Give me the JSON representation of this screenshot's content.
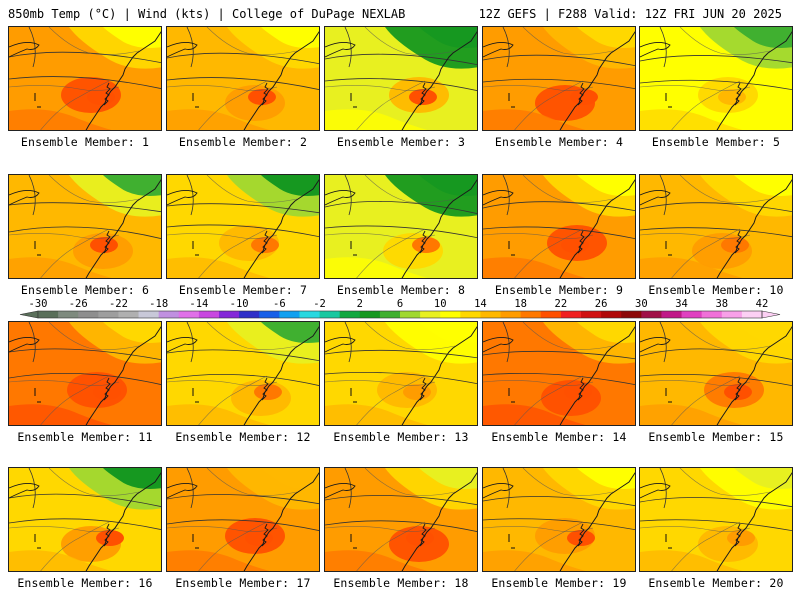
{
  "header": {
    "left": "850mb Temp (°C) | Wind (kts) | College of DuPage NEXLAB",
    "right": "12Z GEFS | F288 Valid: 12Z FRI JUN 20 2025"
  },
  "members": [
    {
      "label": "Ensemble Member: 1",
      "base": 16,
      "warm": 4,
      "cool": 3
    },
    {
      "label": "Ensemble Member: 2",
      "base": 15,
      "warm": 3,
      "cool": 2
    },
    {
      "label": "Ensemble Member: 3",
      "base": 12,
      "warm": 6,
      "cool": 7
    },
    {
      "label": "Ensemble Member: 4",
      "base": 16,
      "warm": 4,
      "cool": 2
    },
    {
      "label": "Ensemble Member: 5",
      "base": 13,
      "warm": 2,
      "cool": 3
    },
    {
      "label": "Ensemble Member: 6",
      "base": 15,
      "warm": 3,
      "cool": 5
    },
    {
      "label": "Ensemble Member: 7",
      "base": 14,
      "warm": 3,
      "cool": 5
    },
    {
      "label": "Ensemble Member: 8",
      "base": 12,
      "warm": 5,
      "cool": 8
    },
    {
      "label": "Ensemble Member: 9",
      "base": 16,
      "warm": 5,
      "cool": 3
    },
    {
      "label": "Ensemble Member: 10",
      "base": 15,
      "warm": 2,
      "cool": 2
    },
    {
      "label": "Ensemble Member: 11",
      "base": 17,
      "warm": 5,
      "cool": 3
    },
    {
      "label": "Ensemble Member: 12",
      "base": 14,
      "warm": 3,
      "cool": 4
    },
    {
      "label": "Ensemble Member: 13",
      "base": 14,
      "warm": 2,
      "cool": 1
    },
    {
      "label": "Ensemble Member: 14",
      "base": 17,
      "warm": 5,
      "cool": 3
    },
    {
      "label": "Ensemble Member: 15",
      "base": 15,
      "warm": 4,
      "cool": 1
    },
    {
      "label": "Ensemble Member: 16",
      "base": 14,
      "warm": 4,
      "cool": 6
    },
    {
      "label": "Ensemble Member: 17",
      "base": 16,
      "warm": 4,
      "cool": 1
    },
    {
      "label": "Ensemble Member: 18",
      "base": 16,
      "warm": 5,
      "cool": 4
    },
    {
      "label": "Ensemble Member: 19",
      "base": 15,
      "warm": 3,
      "cool": 2
    },
    {
      "label": "Ensemble Member: 20",
      "base": 14,
      "warm": 2,
      "cool": 2
    }
  ],
  "colorbar": {
    "ticks": [
      "-30",
      "-26",
      "-22",
      "-18",
      "-14",
      "-10",
      "-6",
      "-2",
      "2",
      "6",
      "10",
      "14",
      "18",
      "22",
      "26",
      "30",
      "34",
      "38",
      "42"
    ],
    "colors": [
      "#5a6f5a",
      "#7e8a7e",
      "#8e8e8e",
      "#9e9e9e",
      "#b0b0b0",
      "#c8c8d8",
      "#c090e0",
      "#e070e8",
      "#c848e0",
      "#8428d8",
      "#3030c8",
      "#1860e8",
      "#10a0f0",
      "#28d8e0",
      "#18c8a0",
      "#10a840",
      "#169820",
      "#40b030",
      "#a0d830",
      "#e8f020",
      "#ffff00",
      "#ffd800",
      "#ffb800",
      "#ff9c00",
      "#ff7800",
      "#ff5000",
      "#f02020",
      "#d01010",
      "#b00808",
      "#8c0808",
      "#a01048",
      "#c01888",
      "#e040c0",
      "#f070d8",
      "#f8a0e8",
      "#fcd0f4"
    ]
  }
}
